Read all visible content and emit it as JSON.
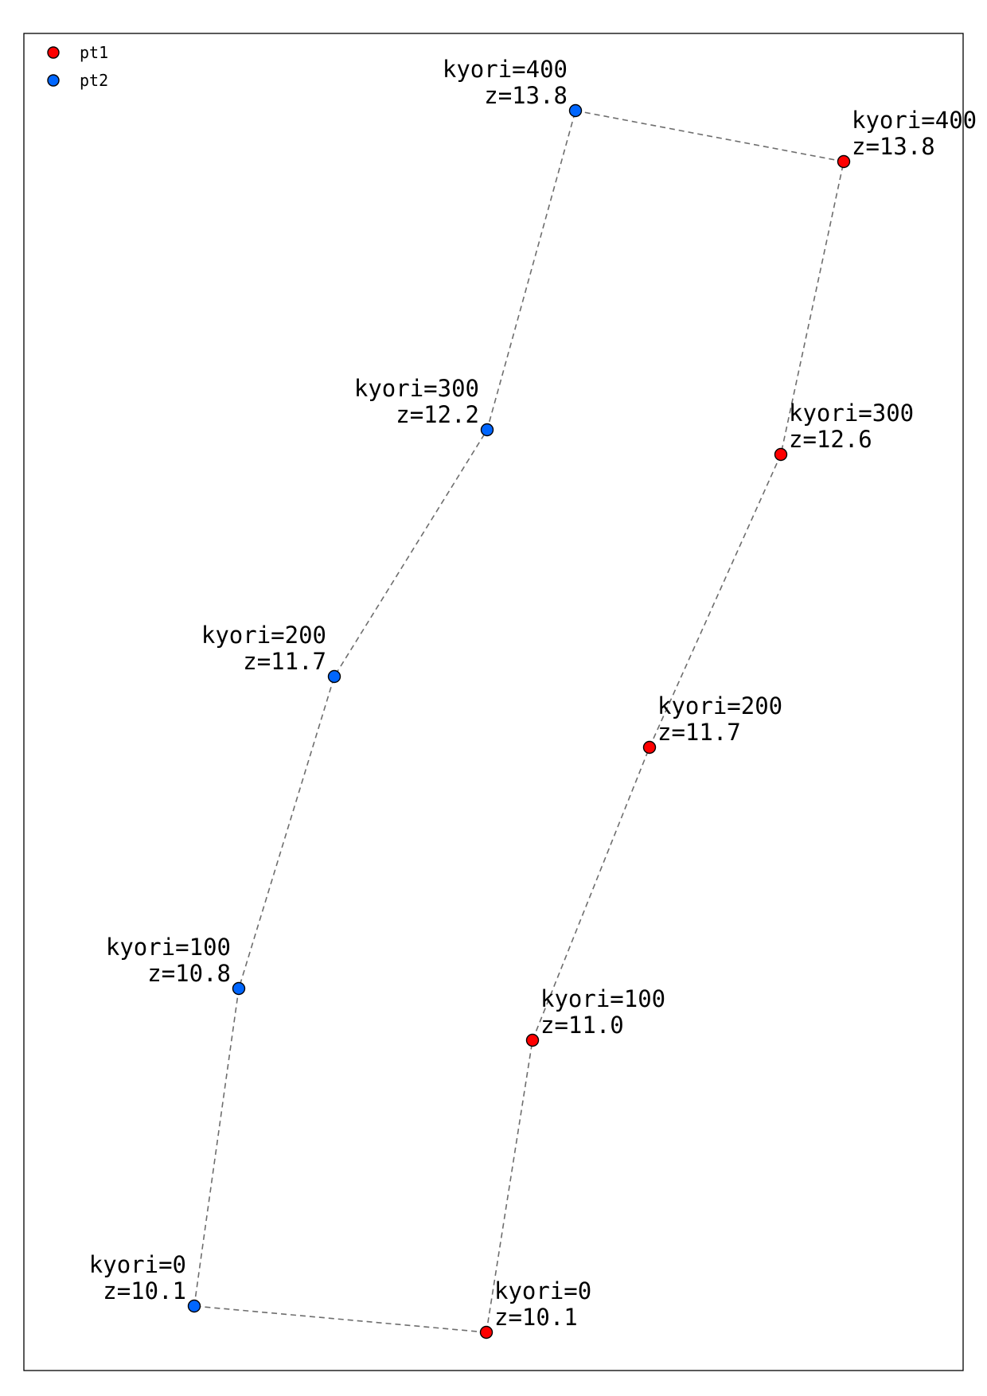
{
  "legend": {
    "items": [
      {
        "name": "pt1",
        "color": "#ff0000"
      },
      {
        "name": "pt2",
        "color": "#0066ff"
      }
    ]
  },
  "cross_links": [
    {
      "kyori": 400
    },
    {
      "kyori": 0
    }
  ],
  "series": [
    {
      "id": "pt1",
      "color": "#ff0000",
      "label_side": "right",
      "points": [
        {
          "kyori_label": "kyori=0",
          "z_label": "z=10.1"
        },
        {
          "kyori_label": "kyori=100",
          "z_label": "z=11.0"
        },
        {
          "kyori_label": "kyori=200",
          "z_label": "z=11.7"
        },
        {
          "kyori_label": "kyori=300",
          "z_label": "z=12.6"
        },
        {
          "kyori_label": "kyori=400",
          "z_label": "z=13.8"
        }
      ]
    },
    {
      "id": "pt2",
      "color": "#0066ff",
      "label_side": "left",
      "points": [
        {
          "kyori_label": "kyori=0",
          "z_label": "z=10.1"
        },
        {
          "kyori_label": "kyori=100",
          "z_label": "z=10.8"
        },
        {
          "kyori_label": "kyori=200",
          "z_label": "z=11.7"
        },
        {
          "kyori_label": "kyori=300",
          "z_label": "z=12.2"
        },
        {
          "kyori_label": "kyori=400",
          "z_label": "z=13.8"
        }
      ]
    }
  ]
}
